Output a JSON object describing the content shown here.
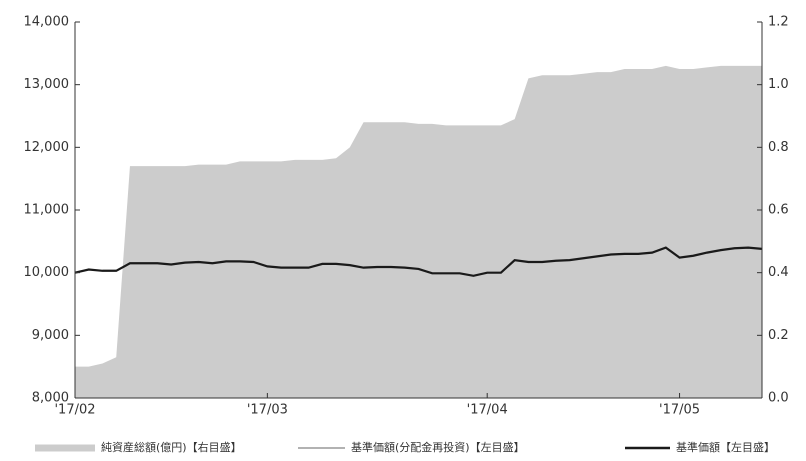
{
  "chart_data": {
    "type": "line",
    "categories": [
      "'17/02",
      null,
      null,
      null,
      null,
      null,
      null,
      null,
      null,
      null,
      null,
      null,
      null,
      null,
      "'17/03",
      null,
      null,
      null,
      null,
      null,
      null,
      null,
      null,
      null,
      null,
      null,
      null,
      null,
      null,
      null,
      "'17/04",
      null,
      null,
      null,
      null,
      null,
      null,
      null,
      null,
      null,
      null,
      null,
      null,
      null,
      "'17/05",
      null,
      null,
      null,
      null,
      null,
      null
    ],
    "series": [
      {
        "name": "純資産総額(億円)【右目盛】",
        "type": "area",
        "axis": "y2",
        "color": "#cccccc",
        "values": [
          0.1,
          0.1,
          0.11,
          0.13,
          0.74,
          0.74,
          0.74,
          0.74,
          0.74,
          0.745,
          0.745,
          0.745,
          0.755,
          0.755,
          0.755,
          0.755,
          0.76,
          0.76,
          0.76,
          0.765,
          0.8,
          0.88,
          0.88,
          0.88,
          0.88,
          0.875,
          0.875,
          0.87,
          0.87,
          0.87,
          0.87,
          0.87,
          0.89,
          1.02,
          1.03,
          1.03,
          1.03,
          1.035,
          1.04,
          1.04,
          1.05,
          1.05,
          1.05,
          1.06,
          1.05,
          1.05,
          1.055,
          1.06,
          1.06,
          1.06,
          1.06
        ]
      },
      {
        "name": "基準価額(分配金再投資)【左目盛】",
        "type": "line",
        "color": "#999999",
        "values": [
          10000,
          10050,
          10030,
          10030,
          10150,
          10150,
          10150,
          10130,
          10160,
          10170,
          10150,
          10180,
          10180,
          10170,
          10100,
          10080,
          10080,
          10080,
          10140,
          10140,
          10120,
          10080,
          10090,
          10090,
          10080,
          10060,
          9990,
          9990,
          9990,
          9950,
          10000,
          10000,
          10200,
          10170,
          10170,
          10190,
          10200,
          10230,
          10260,
          10290,
          10300,
          10300,
          10320,
          10400,
          10240,
          10270,
          10320,
          10360,
          10390,
          10400,
          10380
        ]
      },
      {
        "name": "基準価額【左目盛】",
        "type": "line",
        "color": "#1a1a1a",
        "values": [
          10000,
          10050,
          10030,
          10030,
          10150,
          10150,
          10150,
          10130,
          10160,
          10170,
          10150,
          10180,
          10180,
          10170,
          10100,
          10080,
          10080,
          10080,
          10140,
          10140,
          10120,
          10080,
          10090,
          10090,
          10080,
          10060,
          9990,
          9990,
          9990,
          9950,
          10000,
          10000,
          10200,
          10170,
          10170,
          10190,
          10200,
          10230,
          10260,
          10290,
          10300,
          10300,
          10320,
          10400,
          10240,
          10270,
          10320,
          10360,
          10390,
          10400,
          10380
        ]
      }
    ],
    "ylim": [
      8000,
      14000
    ],
    "yticks": [
      {
        "value": 8000,
        "label": "8,000"
      },
      {
        "value": 9000,
        "label": "9,000"
      },
      {
        "value": 10000,
        "label": "10,000"
      },
      {
        "value": 11000,
        "label": "11,000"
      },
      {
        "value": 12000,
        "label": "12,000"
      },
      {
        "value": 13000,
        "label": "13,000"
      },
      {
        "value": 14000,
        "label": "14,000"
      }
    ],
    "y2lim": [
      0,
      1.2
    ],
    "y2ticks": [
      {
        "value": 0,
        "label": "0.0"
      },
      0.2,
      0.4,
      0.6,
      0.8,
      {
        "value": 1,
        "label": "1.0"
      },
      1.2
    ],
    "legend": "bottom"
  }
}
